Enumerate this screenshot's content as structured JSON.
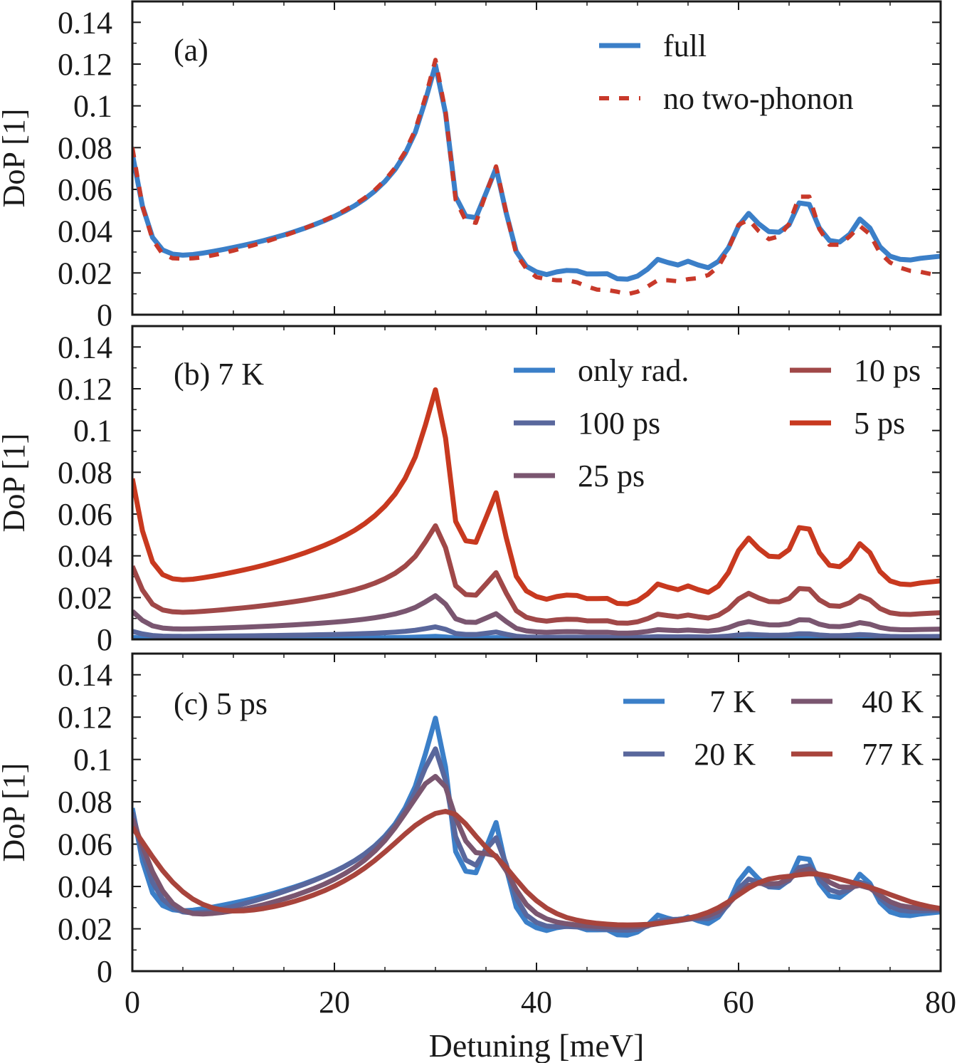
{
  "figure": {
    "xlabel": "Detuning [meV]",
    "xlim": [
      0,
      80
    ],
    "xticks": [
      0,
      20,
      40,
      60,
      80
    ],
    "panel_ylabel": "DoP [1]",
    "panel_ylim": [
      0,
      0.15
    ],
    "yticks": [
      0,
      0.02,
      0.04,
      0.06,
      0.08,
      0.1,
      0.12,
      0.14
    ],
    "ytick_labels": [
      "0",
      "0.02",
      "0.04",
      "0.06",
      "0.08",
      "0.1",
      "0.12",
      "0.14"
    ]
  },
  "chart_data": [
    {
      "type": "line",
      "panel_label": "(a)",
      "ylabel": "DoP [1]",
      "xlabel": "",
      "xlim": [
        0,
        80
      ],
      "ylim": [
        0,
        0.15
      ],
      "legend_position": "top-right",
      "legend_columns": 1,
      "x": [
        0,
        1,
        2,
        3,
        4,
        5,
        6,
        7,
        8,
        9,
        10,
        11,
        12,
        13,
        14,
        15,
        16,
        17,
        18,
        19,
        20,
        21,
        22,
        23,
        24,
        25,
        26,
        27,
        28,
        29,
        30,
        31,
        32,
        33,
        34,
        35,
        36,
        37,
        38,
        39,
        40,
        41,
        42,
        43,
        44,
        45,
        46,
        47,
        48,
        49,
        50,
        51,
        52,
        53,
        54,
        55,
        56,
        57,
        58,
        59,
        60,
        61,
        62,
        63,
        64,
        65,
        66,
        67,
        68,
        69,
        70,
        71,
        72,
        73,
        74,
        75,
        76,
        77,
        78,
        79,
        80
      ],
      "series": [
        {
          "name": "full",
          "color": "#3b7fc8",
          "dash": "solid",
          "values": [
            0.077,
            0.052,
            0.037,
            0.031,
            0.029,
            0.0285,
            0.0288,
            0.0295,
            0.0303,
            0.0312,
            0.0322,
            0.0332,
            0.0343,
            0.0355,
            0.0368,
            0.0382,
            0.0397,
            0.0413,
            0.0431,
            0.045,
            0.0471,
            0.0495,
            0.0522,
            0.0554,
            0.0592,
            0.0638,
            0.0695,
            0.0771,
            0.0873,
            0.1025,
            0.1195,
            0.0964,
            0.0565,
            0.0472,
            0.0465,
            0.0582,
            0.0702,
            0.0488,
            0.0302,
            0.0232,
            0.0205,
            0.0192,
            0.0205,
            0.0212,
            0.021,
            0.0195,
            0.0195,
            0.0196,
            0.0172,
            0.017,
            0.0185,
            0.0218,
            0.0265,
            0.025,
            0.0238,
            0.0256,
            0.0238,
            0.0225,
            0.0255,
            0.032,
            0.0425,
            0.0485,
            0.0435,
            0.0398,
            0.0395,
            0.043,
            0.0535,
            0.0528,
            0.0415,
            0.0355,
            0.0348,
            0.0385,
            0.0458,
            0.0415,
            0.0325,
            0.028,
            0.0265,
            0.0262,
            0.027,
            0.0275,
            0.028
          ]
        },
        {
          "name": "no two-phonon",
          "color": "#c8392a",
          "dash": "dashed",
          "values": [
            0.08,
            0.052,
            0.036,
            0.029,
            0.027,
            0.0268,
            0.027,
            0.0275,
            0.0285,
            0.0295,
            0.0307,
            0.032,
            0.0333,
            0.0347,
            0.0362,
            0.0378,
            0.0395,
            0.0413,
            0.0432,
            0.0452,
            0.0474,
            0.0499,
            0.0527,
            0.0559,
            0.0597,
            0.0644,
            0.0703,
            0.078,
            0.0885,
            0.104,
            0.122,
            0.097,
            0.055,
            0.045,
            0.044,
            0.058,
            0.071,
            0.049,
            0.029,
            0.022,
            0.018,
            0.017,
            0.0165,
            0.0165,
            0.0155,
            0.0135,
            0.012,
            0.0118,
            0.011,
            0.0098,
            0.011,
            0.0135,
            0.0165,
            0.0165,
            0.016,
            0.017,
            0.0175,
            0.019,
            0.023,
            0.0315,
            0.043,
            0.0455,
            0.04,
            0.0362,
            0.0375,
            0.0435,
            0.0565,
            0.0565,
            0.041,
            0.0335,
            0.0335,
            0.0375,
            0.0425,
            0.0385,
            0.0295,
            0.025,
            0.0225,
            0.021,
            0.0205,
            0.0195,
            0.0185
          ]
        }
      ]
    },
    {
      "type": "line",
      "panel_label": "(b) 7 K",
      "ylabel": "DoP [1]",
      "xlabel": "",
      "xlim": [
        0,
        80
      ],
      "ylim": [
        0,
        0.15
      ],
      "legend_position": "top-right",
      "legend_columns": 2,
      "x": [
        0,
        1,
        2,
        3,
        4,
        5,
        6,
        7,
        8,
        9,
        10,
        11,
        12,
        13,
        14,
        15,
        16,
        17,
        18,
        19,
        20,
        21,
        22,
        23,
        24,
        25,
        26,
        27,
        28,
        29,
        30,
        31,
        32,
        33,
        34,
        35,
        36,
        37,
        38,
        39,
        40,
        41,
        42,
        43,
        44,
        45,
        46,
        47,
        48,
        49,
        50,
        51,
        52,
        53,
        54,
        55,
        56,
        57,
        58,
        59,
        60,
        61,
        62,
        63,
        64,
        65,
        66,
        67,
        68,
        69,
        70,
        71,
        72,
        73,
        74,
        75,
        76,
        77,
        78,
        79,
        80
      ],
      "series": [
        {
          "name": "only rad.",
          "color": "#3b7fc8",
          "scale": 0.012
        },
        {
          "name": "100 ps",
          "color": "#59679c",
          "scale": 0.05
        },
        {
          "name": "25 ps",
          "color": "#7a5670",
          "scale": 0.175
        },
        {
          "name": "10 ps",
          "color": "#a04848",
          "scale": 0.455
        },
        {
          "name": "5 ps",
          "color": "#c8391f",
          "scale": 1.0
        }
      ]
    },
    {
      "type": "line",
      "panel_label": "(c) 5 ps",
      "ylabel": "DoP [1]",
      "xlabel": "Detuning [meV]",
      "xlim": [
        0,
        80
      ],
      "ylim": [
        0,
        0.15
      ],
      "legend_position": "top-right",
      "legend_columns": 2,
      "x": [
        0,
        1,
        2,
        3,
        4,
        5,
        6,
        7,
        8,
        9,
        10,
        11,
        12,
        13,
        14,
        15,
        16,
        17,
        18,
        19,
        20,
        21,
        22,
        23,
        24,
        25,
        26,
        27,
        28,
        29,
        30,
        31,
        32,
        33,
        34,
        35,
        36,
        37,
        38,
        39,
        40,
        41,
        42,
        43,
        44,
        45,
        46,
        47,
        48,
        49,
        50,
        51,
        52,
        53,
        54,
        55,
        56,
        57,
        58,
        59,
        60,
        61,
        62,
        63,
        64,
        65,
        66,
        67,
        68,
        69,
        70,
        71,
        72,
        73,
        74,
        75,
        76,
        77,
        78,
        79,
        80
      ],
      "series": [
        {
          "name": "7 K",
          "color": "#3b7fc8",
          "values": [
            0.077,
            0.052,
            0.037,
            0.031,
            0.029,
            0.0285,
            0.0288,
            0.0295,
            0.0303,
            0.0312,
            0.0322,
            0.0332,
            0.0343,
            0.0355,
            0.0368,
            0.0382,
            0.0397,
            0.0413,
            0.0431,
            0.045,
            0.0471,
            0.0495,
            0.0522,
            0.0554,
            0.0592,
            0.0638,
            0.0695,
            0.0771,
            0.0873,
            0.1025,
            0.1195,
            0.0964,
            0.0565,
            0.0472,
            0.0465,
            0.0582,
            0.0702,
            0.0488,
            0.0302,
            0.0232,
            0.0205,
            0.0192,
            0.0205,
            0.0212,
            0.021,
            0.0195,
            0.0195,
            0.0196,
            0.0172,
            0.017,
            0.0185,
            0.0218,
            0.0265,
            0.025,
            0.0238,
            0.0256,
            0.0238,
            0.0225,
            0.0255,
            0.032,
            0.0425,
            0.0485,
            0.0435,
            0.0398,
            0.0395,
            0.043,
            0.0535,
            0.0528,
            0.0415,
            0.0355,
            0.0348,
            0.0385,
            0.0458,
            0.0415,
            0.0325,
            0.028,
            0.0265,
            0.0262,
            0.027,
            0.0275,
            0.028
          ]
        },
        {
          "name": "20 K",
          "color": "#59679c",
          "values": [
            0.075,
            0.056,
            0.042,
            0.034,
            0.03,
            0.028,
            0.0275,
            0.0278,
            0.0285,
            0.0295,
            0.0306,
            0.0318,
            0.0331,
            0.0345,
            0.036,
            0.0376,
            0.0393,
            0.041,
            0.0429,
            0.0449,
            0.047,
            0.0494,
            0.0521,
            0.0553,
            0.059,
            0.0634,
            0.0688,
            0.0756,
            0.0845,
            0.096,
            0.105,
            0.09,
            0.0635,
            0.0525,
            0.05,
            0.0575,
            0.063,
            0.0505,
            0.0345,
            0.0265,
            0.023,
            0.0213,
            0.021,
            0.0211,
            0.0209,
            0.0204,
            0.0201,
            0.0198,
            0.0194,
            0.0193,
            0.0197,
            0.0213,
            0.0235,
            0.0243,
            0.0245,
            0.025,
            0.0248,
            0.0248,
            0.0265,
            0.0315,
            0.039,
            0.0435,
            0.042,
            0.04,
            0.0402,
            0.0428,
            0.049,
            0.0498,
            0.0435,
            0.0385,
            0.037,
            0.0385,
            0.042,
            0.0405,
            0.0345,
            0.0305,
            0.0288,
            0.0283,
            0.0284,
            0.0286,
            0.0288
          ]
        },
        {
          "name": "40 K",
          "color": "#7a5670",
          "values": [
            0.072,
            0.059,
            0.047,
            0.038,
            0.032,
            0.0288,
            0.0272,
            0.027,
            0.0273,
            0.0278,
            0.0285,
            0.0293,
            0.0303,
            0.0314,
            0.0327,
            0.0341,
            0.0356,
            0.0373,
            0.0391,
            0.0411,
            0.0434,
            0.046,
            0.049,
            0.0525,
            0.0567,
            0.0617,
            0.0677,
            0.0745,
            0.0815,
            0.0885,
            0.092,
            0.087,
            0.0725,
            0.0615,
            0.056,
            0.0555,
            0.0545,
            0.0475,
            0.0385,
            0.0315,
            0.0272,
            0.0247,
            0.0232,
            0.0224,
            0.0218,
            0.0214,
            0.0211,
            0.0209,
            0.0208,
            0.0208,
            0.021,
            0.0216,
            0.0224,
            0.0231,
            0.0238,
            0.0245,
            0.0252,
            0.0262,
            0.0282,
            0.0318,
            0.0368,
            0.0405,
            0.0415,
            0.0412,
            0.0415,
            0.0435,
            0.047,
            0.0482,
            0.0455,
            0.042,
            0.0398,
            0.0396,
            0.0405,
            0.0392,
            0.0358,
            0.0328,
            0.031,
            0.0302,
            0.0298,
            0.0295,
            0.0293
          ]
        },
        {
          "name": "77 K",
          "color": "#a8443c",
          "values": [
            0.068,
            0.061,
            0.054,
            0.0475,
            0.042,
            0.0375,
            0.034,
            0.0315,
            0.0298,
            0.0288,
            0.0284,
            0.0285,
            0.0289,
            0.0296,
            0.0305,
            0.0316,
            0.0329,
            0.0344,
            0.0361,
            0.038,
            0.0402,
            0.0427,
            0.0455,
            0.0487,
            0.0523,
            0.0563,
            0.0605,
            0.0648,
            0.0688,
            0.072,
            0.0745,
            0.0755,
            0.074,
            0.0695,
            0.0638,
            0.0585,
            0.054,
            0.049,
            0.0432,
            0.0377,
            0.0333,
            0.0298,
            0.0272,
            0.0253,
            0.0241,
            0.0232,
            0.0226,
            0.0222,
            0.0219,
            0.0218,
            0.0219,
            0.0221,
            0.0226,
            0.0232,
            0.024,
            0.025,
            0.0262,
            0.0278,
            0.03,
            0.0328,
            0.036,
            0.0392,
            0.0418,
            0.0435,
            0.0443,
            0.0448,
            0.0455,
            0.046,
            0.0458,
            0.0448,
            0.0435,
            0.0422,
            0.041,
            0.0396,
            0.038,
            0.0362,
            0.0345,
            0.0328,
            0.0315,
            0.0304,
            0.0296
          ]
        }
      ]
    }
  ]
}
